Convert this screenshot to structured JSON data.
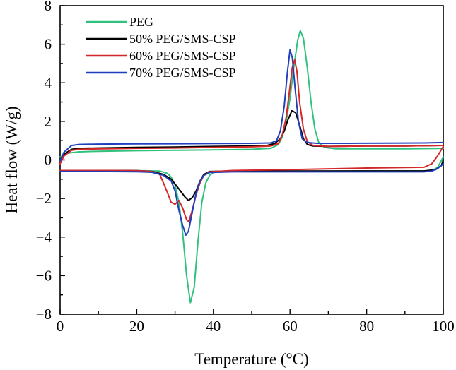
{
  "chart_data": {
    "type": "line",
    "xlabel": "Temperature (°C)",
    "ylabel": "Heat flow (W/g)",
    "xlim": [
      0,
      100
    ],
    "ylim": [
      -8,
      8
    ],
    "x_ticks": [
      "0",
      "20",
      "40",
      "60",
      "80",
      "100"
    ],
    "y_ticks": [
      "−8",
      "−6",
      "−4",
      "−2",
      "0",
      "2",
      "4",
      "6",
      "8"
    ],
    "grid": false,
    "legend_position": "top-left",
    "series": [
      {
        "name": "PEG",
        "color": "#2ec27e",
        "heating": [
          [
            0,
            0.15
          ],
          [
            2,
            0.35
          ],
          [
            5,
            0.42
          ],
          [
            10,
            0.45
          ],
          [
            20,
            0.48
          ],
          [
            30,
            0.5
          ],
          [
            40,
            0.52
          ],
          [
            50,
            0.55
          ],
          [
            55,
            0.6
          ],
          [
            57,
            0.8
          ],
          [
            58,
            1.2
          ],
          [
            59,
            2.0
          ],
          [
            60,
            3.2
          ],
          [
            61,
            4.8
          ],
          [
            62,
            6.2
          ],
          [
            62.7,
            6.7
          ],
          [
            63.5,
            6.3
          ],
          [
            64.5,
            4.8
          ],
          [
            65.5,
            3.0
          ],
          [
            66.5,
            1.6
          ],
          [
            67.5,
            0.9
          ],
          [
            69,
            0.65
          ],
          [
            72,
            0.58
          ],
          [
            80,
            0.58
          ],
          [
            90,
            0.58
          ],
          [
            100,
            0.6
          ]
        ],
        "cooling": [
          [
            0,
            -0.55
          ],
          [
            10,
            -0.55
          ],
          [
            20,
            -0.56
          ],
          [
            26,
            -0.58
          ],
          [
            28,
            -0.7
          ],
          [
            29,
            -0.9
          ],
          [
            30,
            -1.3
          ],
          [
            31,
            -2.2
          ],
          [
            32,
            -3.8
          ],
          [
            33,
            -6.0
          ],
          [
            34,
            -7.4
          ],
          [
            35,
            -6.6
          ],
          [
            36,
            -4.2
          ],
          [
            37,
            -2.2
          ],
          [
            38,
            -1.2
          ],
          [
            39,
            -0.8
          ],
          [
            40,
            -0.65
          ],
          [
            45,
            -0.6
          ],
          [
            60,
            -0.6
          ],
          [
            80,
            -0.58
          ],
          [
            95,
            -0.58
          ],
          [
            97,
            -0.55
          ],
          [
            98.5,
            -0.4
          ],
          [
            100,
            0.15
          ]
        ]
      },
      {
        "name": "50% PEG/SMS-CSP",
        "color": "#000000",
        "heating": [
          [
            0,
            -0.1
          ],
          [
            1,
            0.3
          ],
          [
            3,
            0.55
          ],
          [
            5,
            0.6
          ],
          [
            10,
            0.62
          ],
          [
            20,
            0.65
          ],
          [
            30,
            0.67
          ],
          [
            40,
            0.7
          ],
          [
            50,
            0.72
          ],
          [
            54,
            0.75
          ],
          [
            56,
            0.85
          ],
          [
            57.5,
            1.1
          ],
          [
            58.5,
            1.5
          ],
          [
            59.5,
            2.1
          ],
          [
            60.5,
            2.55
          ],
          [
            61.5,
            2.45
          ],
          [
            62.5,
            1.8
          ],
          [
            63.5,
            1.1
          ],
          [
            64.5,
            0.8
          ],
          [
            66,
            0.72
          ],
          [
            70,
            0.7
          ],
          [
            80,
            0.72
          ],
          [
            90,
            0.72
          ],
          [
            100,
            0.75
          ]
        ],
        "cooling": [
          [
            0,
            -0.55
          ],
          [
            10,
            -0.55
          ],
          [
            20,
            -0.56
          ],
          [
            24,
            -0.6
          ],
          [
            27,
            -0.75
          ],
          [
            29,
            -1.0
          ],
          [
            31,
            -1.5
          ],
          [
            32.5,
            -1.9
          ],
          [
            33.5,
            -2.1
          ],
          [
            34.5,
            -1.95
          ],
          [
            35.5,
            -1.6
          ],
          [
            36.5,
            -1.1
          ],
          [
            37.5,
            -0.75
          ],
          [
            39,
            -0.6
          ],
          [
            45,
            -0.58
          ],
          [
            60,
            -0.58
          ],
          [
            80,
            -0.57
          ],
          [
            95,
            -0.57
          ],
          [
            98,
            -0.5
          ],
          [
            99.5,
            -0.3
          ],
          [
            100,
            0
          ]
        ]
      },
      {
        "name": "60% PEG/SMS-CSP",
        "color": "#d62728",
        "heating": [
          [
            0,
            -0.2
          ],
          [
            1,
            0.2
          ],
          [
            3,
            0.5
          ],
          [
            5,
            0.55
          ],
          [
            10,
            0.57
          ],
          [
            20,
            0.6
          ],
          [
            30,
            0.62
          ],
          [
            40,
            0.65
          ],
          [
            50,
            0.68
          ],
          [
            55,
            0.72
          ],
          [
            57,
            0.85
          ],
          [
            58,
            1.3
          ],
          [
            59,
            2.2
          ],
          [
            60,
            3.8
          ],
          [
            60.6,
            4.8
          ],
          [
            61.2,
            5.2
          ],
          [
            61.8,
            4.6
          ],
          [
            62.5,
            3.0
          ],
          [
            63.5,
            1.6
          ],
          [
            64.5,
            0.95
          ],
          [
            66,
            0.75
          ],
          [
            70,
            0.7
          ],
          [
            80,
            0.72
          ],
          [
            90,
            0.72
          ],
          [
            100,
            0.75
          ]
        ],
        "cooling": [
          [
            0,
            -0.55
          ],
          [
            10,
            -0.55
          ],
          [
            20,
            -0.56
          ],
          [
            24,
            -0.6
          ],
          [
            26,
            -0.75
          ],
          [
            27,
            -1.2
          ],
          [
            28,
            -1.7
          ],
          [
            29,
            -2.2
          ],
          [
            30,
            -2.3
          ],
          [
            31,
            -2.1
          ],
          [
            32,
            -2.5
          ],
          [
            33,
            -3.1
          ],
          [
            33.6,
            -3.2
          ],
          [
            34.5,
            -2.6
          ],
          [
            35.5,
            -1.8
          ],
          [
            36.5,
            -1.2
          ],
          [
            37.5,
            -0.8
          ],
          [
            39,
            -0.62
          ],
          [
            45,
            -0.55
          ],
          [
            60,
            -0.5
          ],
          [
            80,
            -0.42
          ],
          [
            95,
            -0.38
          ],
          [
            97,
            -0.2
          ],
          [
            98.5,
            0.2
          ],
          [
            100,
            0.7
          ]
        ]
      },
      {
        "name": "70% PEG/SMS-CSP",
        "color": "#1f3fbf",
        "heating": [
          [
            0,
            -0.05
          ],
          [
            1,
            0.4
          ],
          [
            3,
            0.75
          ],
          [
            5,
            0.8
          ],
          [
            10,
            0.82
          ],
          [
            20,
            0.83
          ],
          [
            30,
            0.84
          ],
          [
            40,
            0.85
          ],
          [
            50,
            0.86
          ],
          [
            55,
            0.88
          ],
          [
            56.5,
            1.0
          ],
          [
            57.5,
            1.5
          ],
          [
            58.5,
            2.8
          ],
          [
            59.3,
            4.5
          ],
          [
            60,
            5.7
          ],
          [
            60.6,
            5.3
          ],
          [
            61.3,
            3.8
          ],
          [
            62.2,
            2.0
          ],
          [
            63.2,
            1.1
          ],
          [
            64.5,
            0.9
          ],
          [
            67,
            0.86
          ],
          [
            75,
            0.86
          ],
          [
            85,
            0.87
          ],
          [
            95,
            0.88
          ],
          [
            100,
            0.9
          ]
        ],
        "cooling": [
          [
            0,
            -0.6
          ],
          [
            10,
            -0.6
          ],
          [
            20,
            -0.61
          ],
          [
            24,
            -0.64
          ],
          [
            27,
            -0.8
          ],
          [
            29,
            -1.1
          ],
          [
            30,
            -1.6
          ],
          [
            31,
            -2.6
          ],
          [
            32,
            -3.4
          ],
          [
            32.8,
            -3.9
          ],
          [
            33.5,
            -3.7
          ],
          [
            34.5,
            -2.7
          ],
          [
            35.5,
            -1.7
          ],
          [
            36.5,
            -1.1
          ],
          [
            37.5,
            -0.8
          ],
          [
            39,
            -0.65
          ],
          [
            45,
            -0.62
          ],
          [
            60,
            -0.62
          ],
          [
            80,
            -0.62
          ],
          [
            95,
            -0.62
          ],
          [
            97,
            -0.58
          ],
          [
            98.5,
            -0.45
          ],
          [
            100,
            -0.2
          ]
        ]
      }
    ]
  }
}
